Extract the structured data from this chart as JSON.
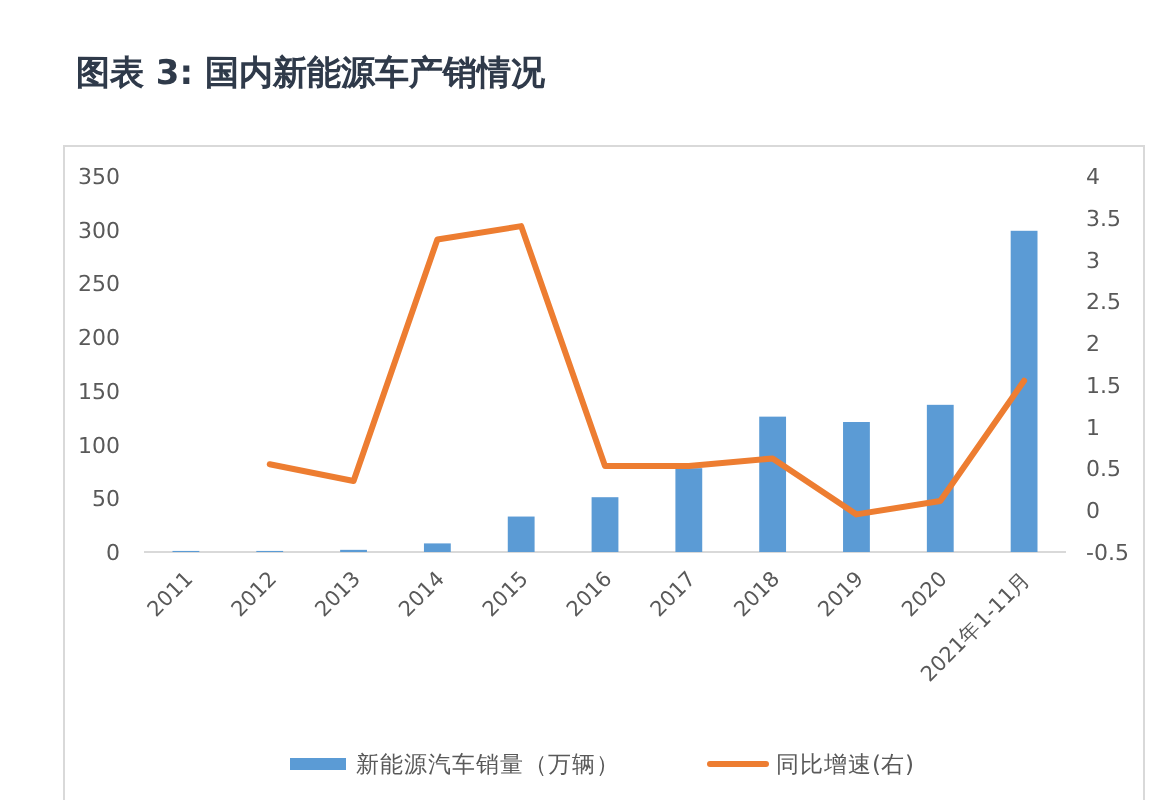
{
  "chart_data": {
    "type": "bar",
    "title": "图表 3:  国内新能源车产销情况",
    "categories": [
      "2011",
      "2012",
      "2013",
      "2014",
      "2015",
      "2016",
      "2017",
      "2018",
      "2019",
      "2020",
      "2021年1-11月"
    ],
    "series": [
      {
        "name": "新能源汽车销量（万辆）",
        "color": "#5b9bd5",
        "values": [
          1,
          1,
          2,
          8,
          33,
          51,
          78,
          126,
          121,
          137,
          299
        ]
      },
      {
        "name": "同比增速(右)",
        "type": "line",
        "axis": "y2",
        "color": "#ed7d31",
        "values": [
          null,
          0.55,
          0.35,
          3.24,
          3.4,
          0.53,
          0.53,
          0.62,
          -0.05,
          0.11,
          1.55
        ]
      }
    ],
    "ylim": [
      0,
      350
    ],
    "yticks": [
      0,
      50,
      100,
      150,
      200,
      250,
      300,
      350
    ],
    "y2lim": [
      -0.5,
      4
    ],
    "y2ticks": [
      -0.5,
      0,
      0.5,
      1,
      1.5,
      2,
      2.5,
      3,
      3.5,
      4
    ],
    "legend": "bottom"
  }
}
